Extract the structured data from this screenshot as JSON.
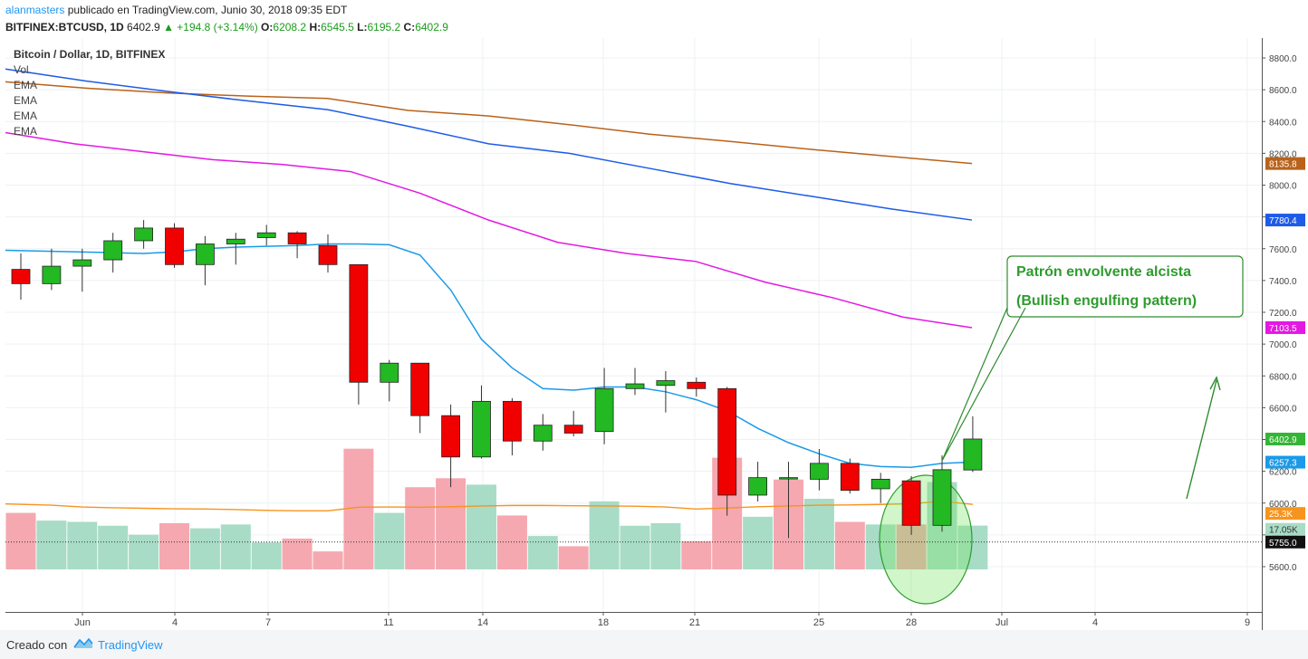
{
  "header": {
    "author": "alanmasters",
    "published_text": "publicado en TradingView.com, Junio 30, 2018 09:35 EDT",
    "symbol": "BITFINEX:BTCUSD, 1D",
    "last_price": "6402.9",
    "change": "+194.8 (+3.14%)",
    "open_label": "O:",
    "open": "6208.2",
    "high_label": "H:",
    "high": "6545.5",
    "low_label": "L:",
    "low": "6195.2",
    "close_label": "C:",
    "close": "6402.9"
  },
  "chart_data": {
    "type": "candlestick",
    "title": "Bitcoin / Dollar, 1D, BITFINEX",
    "legend": [
      "Vol.",
      "EMA",
      "EMA",
      "EMA",
      "EMA"
    ],
    "x_ticks": [
      "Jun",
      "4",
      "7",
      "11",
      "14",
      "18",
      "21",
      "25",
      "28",
      "Jul",
      "4",
      "9"
    ],
    "y_ticks": [
      5600,
      5800,
      6000,
      6200,
      6400,
      6600,
      6800,
      7000,
      7200,
      7400,
      7600,
      7800,
      8000,
      8200,
      8400,
      8600,
      8800
    ],
    "y_range": [
      5550,
      8900
    ],
    "colors": {
      "up": "#22b922",
      "down": "#f10000",
      "ema_brown": "#b9621a",
      "ema_blue": "#1e5be6",
      "ema_magenta": "#e318e3",
      "ema_cyan": "#1a9ae8",
      "vol_ma": "#f7941d",
      "vol_up": "#a8dcc6",
      "vol_down": "#f5a8b0",
      "price_tag": "#35b535"
    },
    "candles": [
      {
        "date": "May 30",
        "o": 7470,
        "h": 7570,
        "l": 7280,
        "c": 7380
      },
      {
        "date": "May 31",
        "o": 7380,
        "h": 7600,
        "l": 7340,
        "c": 7490
      },
      {
        "date": "Jun 1",
        "o": 7490,
        "h": 7600,
        "l": 7330,
        "c": 7530
      },
      {
        "date": "Jun 2",
        "o": 7530,
        "h": 7700,
        "l": 7450,
        "c": 7650
      },
      {
        "date": "Jun 3",
        "o": 7650,
        "h": 7780,
        "l": 7600,
        "c": 7730
      },
      {
        "date": "Jun 4",
        "o": 7730,
        "h": 7760,
        "l": 7480,
        "c": 7500
      },
      {
        "date": "Jun 5",
        "o": 7500,
        "h": 7680,
        "l": 7370,
        "c": 7630
      },
      {
        "date": "Jun 6",
        "o": 7630,
        "h": 7700,
        "l": 7500,
        "c": 7660
      },
      {
        "date": "Jun 7",
        "o": 7670,
        "h": 7750,
        "l": 7620,
        "c": 7700
      },
      {
        "date": "Jun 8",
        "o": 7700,
        "h": 7710,
        "l": 7540,
        "c": 7630
      },
      {
        "date": "Jun 9",
        "o": 7620,
        "h": 7690,
        "l": 7450,
        "c": 7500
      },
      {
        "date": "Jun 10",
        "o": 7500,
        "h": 7500,
        "l": 6620,
        "c": 6760
      },
      {
        "date": "Jun 11",
        "o": 6760,
        "h": 6900,
        "l": 6640,
        "c": 6880
      },
      {
        "date": "Jun 12",
        "o": 6880,
        "h": 6880,
        "l": 6440,
        "c": 6550
      },
      {
        "date": "Jun 13",
        "o": 6550,
        "h": 6620,
        "l": 6100,
        "c": 6290
      },
      {
        "date": "Jun 14",
        "o": 6290,
        "h": 6740,
        "l": 6280,
        "c": 6640
      },
      {
        "date": "Jun 15",
        "o": 6640,
        "h": 6660,
        "l": 6300,
        "c": 6390
      },
      {
        "date": "Jun 16",
        "o": 6390,
        "h": 6560,
        "l": 6330,
        "c": 6490
      },
      {
        "date": "Jun 17",
        "o": 6490,
        "h": 6580,
        "l": 6420,
        "c": 6440
      },
      {
        "date": "Jun 18",
        "o": 6450,
        "h": 6850,
        "l": 6370,
        "c": 6720
      },
      {
        "date": "Jun 19",
        "o": 6720,
        "h": 6850,
        "l": 6680,
        "c": 6750
      },
      {
        "date": "Jun 20",
        "o": 6740,
        "h": 6830,
        "l": 6570,
        "c": 6770
      },
      {
        "date": "Jun 21",
        "o": 6760,
        "h": 6790,
        "l": 6670,
        "c": 6720
      },
      {
        "date": "Jun 22",
        "o": 6720,
        "h": 6730,
        "l": 5920,
        "c": 6050
      },
      {
        "date": "Jun 23",
        "o": 6050,
        "h": 6260,
        "l": 6010,
        "c": 6160
      },
      {
        "date": "Jun 24",
        "o": 6160,
        "h": 6260,
        "l": 5780,
        "c": 6160
      },
      {
        "date": "Jun 25",
        "o": 6150,
        "h": 6340,
        "l": 6080,
        "c": 6250
      },
      {
        "date": "Jun 26",
        "o": 6250,
        "h": 6280,
        "l": 6060,
        "c": 6080
      },
      {
        "date": "Jun 27",
        "o": 6090,
        "h": 6190,
        "l": 6000,
        "c": 6150
      },
      {
        "date": "Jun 28",
        "o": 6140,
        "h": 6170,
        "l": 5800,
        "c": 5860
      },
      {
        "date": "Jun 29",
        "o": 5860,
        "h": 6300,
        "l": 5820,
        "c": 6210
      },
      {
        "date": "Jun 30",
        "o": 6208.2,
        "h": 6545.5,
        "l": 6195.2,
        "c": 6402.9
      }
    ],
    "volume": [
      {
        "dir": "down",
        "v": 22.0
      },
      {
        "dir": "up",
        "v": 19.0
      },
      {
        "dir": "up",
        "v": 18.5
      },
      {
        "dir": "up",
        "v": 17.0
      },
      {
        "dir": "up",
        "v": 13.5
      },
      {
        "dir": "down",
        "v": 18.0
      },
      {
        "dir": "up",
        "v": 16.0
      },
      {
        "dir": "up",
        "v": 17.5
      },
      {
        "dir": "up",
        "v": 10.5
      },
      {
        "dir": "down",
        "v": 12.0
      },
      {
        "dir": "down",
        "v": 7.0
      },
      {
        "dir": "down",
        "v": 47.0
      },
      {
        "dir": "up",
        "v": 22.0
      },
      {
        "dir": "down",
        "v": 32.0
      },
      {
        "dir": "down",
        "v": 35.5
      },
      {
        "dir": "up",
        "v": 33.0
      },
      {
        "dir": "down",
        "v": 21.0
      },
      {
        "dir": "up",
        "v": 13.0
      },
      {
        "dir": "down",
        "v": 9.0
      },
      {
        "dir": "up",
        "v": 26.5
      },
      {
        "dir": "up",
        "v": 17.0
      },
      {
        "dir": "up",
        "v": 18.0
      },
      {
        "dir": "down",
        "v": 11.0
      },
      {
        "dir": "down",
        "v": 43.5
      },
      {
        "dir": "up",
        "v": 20.5
      },
      {
        "dir": "down",
        "v": 35.0
      },
      {
        "dir": "up",
        "v": 27.5
      },
      {
        "dir": "down",
        "v": 18.5
      },
      {
        "dir": "up",
        "v": 17.5
      },
      {
        "dir": "down",
        "v": 17.5
      },
      {
        "dir": "up",
        "v": 34.0
      },
      {
        "dir": "up",
        "v": 17.05
      }
    ],
    "volume_max": 55,
    "vol_ma": [
      25.5,
      25.0,
      24.3,
      24.0,
      23.8,
      23.6,
      23.5,
      23.3,
      23.0,
      22.8,
      22.8,
      24.2,
      24.3,
      24.2,
      24.4,
      24.7,
      24.9,
      24.9,
      24.8,
      24.7,
      24.6,
      24.3,
      23.5,
      23.9,
      24.4,
      24.7,
      25.0,
      25.1,
      25.3,
      25.6,
      26.5,
      25.3
    ],
    "ema_cyan": [
      [
        0,
        7590
      ],
      [
        1,
        7575
      ],
      [
        2,
        7570
      ],
      [
        3,
        7580
      ],
      [
        4,
        7600
      ],
      [
        5,
        7610
      ],
      [
        6,
        7615
      ],
      [
        7,
        7620
      ],
      [
        8,
        7630
      ],
      [
        9,
        7630
      ],
      [
        10,
        7625
      ],
      [
        11,
        7560
      ],
      [
        12,
        7340
      ],
      [
        13,
        7030
      ],
      [
        14,
        6850
      ],
      [
        15,
        6720
      ],
      [
        16,
        6710
      ],
      [
        17,
        6730
      ],
      [
        18,
        6730
      ],
      [
        19,
        6700
      ],
      [
        20,
        6650
      ],
      [
        21,
        6580
      ],
      [
        22,
        6470
      ],
      [
        23,
        6380
      ],
      [
        24,
        6310
      ],
      [
        25,
        6250
      ],
      [
        26,
        6230
      ],
      [
        27,
        6225
      ],
      [
        28,
        6250
      ],
      [
        29,
        6257.3
      ]
    ],
    "ema_magenta": [
      [
        0,
        8330
      ],
      [
        1,
        8260
      ],
      [
        2,
        8210
      ],
      [
        3,
        8160
      ],
      [
        4,
        8130
      ],
      [
        5,
        8085
      ],
      [
        6,
        7950
      ],
      [
        7,
        7780
      ],
      [
        8,
        7640
      ],
      [
        9,
        7570
      ],
      [
        10,
        7520
      ],
      [
        11,
        7390
      ],
      [
        12,
        7290
      ],
      [
        13,
        7170
      ],
      [
        14,
        7103.5
      ]
    ],
    "ema_blue": [
      [
        0,
        8730
      ],
      [
        1,
        8655
      ],
      [
        2,
        8590
      ],
      [
        3,
        8530
      ],
      [
        4,
        8475
      ],
      [
        5,
        8370
      ],
      [
        6,
        8260
      ],
      [
        7,
        8200
      ],
      [
        8,
        8105
      ],
      [
        9,
        8010
      ],
      [
        10,
        7930
      ],
      [
        11,
        7850
      ],
      [
        12,
        7780.4
      ]
    ],
    "ema_brown": [
      [
        0,
        8650
      ],
      [
        1,
        8610
      ],
      [
        2,
        8580
      ],
      [
        3,
        8560
      ],
      [
        4,
        8545
      ],
      [
        5,
        8470
      ],
      [
        6,
        8435
      ],
      [
        7,
        8380
      ],
      [
        8,
        8320
      ],
      [
        9,
        8275
      ],
      [
        10,
        8225
      ],
      [
        11,
        8180
      ],
      [
        12,
        8135.8
      ]
    ],
    "annotation": {
      "line1": "Patrón envolvente alcista",
      "line2": "(Bullish engulfing pattern)"
    },
    "price_tags": [
      {
        "label": "8135.8",
        "value": 8135.8,
        "color": "#b9621a"
      },
      {
        "label": "7780.4",
        "value": 7780.4,
        "color": "#1e5be6"
      },
      {
        "label": "7103.5",
        "value": 7103.5,
        "color": "#e318e3"
      },
      {
        "label": "6402.9",
        "value": 6402.9,
        "color": "#35b535"
      },
      {
        "label": "6257.3",
        "value": 6257.3,
        "color": "#1a9ae8"
      },
      {
        "label": "25.3K",
        "value": 5935,
        "color": "#f7941d"
      },
      {
        "label": "17.05K",
        "value": 5835,
        "color": "#a8dcc6",
        "text_color": "#333333"
      },
      {
        "label": "5755.0",
        "value": 5755,
        "color": "#111111"
      }
    ]
  },
  "footer": {
    "created_by": "Creado con",
    "brand": "TradingView"
  }
}
